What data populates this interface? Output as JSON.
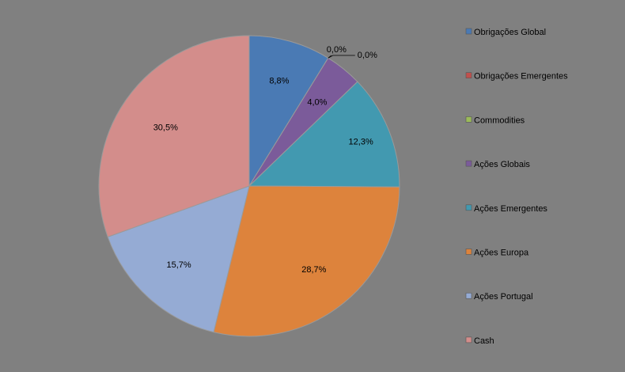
{
  "chart_data": {
    "type": "pie",
    "title": "",
    "legend_position": "right",
    "slices": [
      {
        "label": "Obrigações Global",
        "value": 8.8,
        "display": "8,8%",
        "color": "#4a7ab4"
      },
      {
        "label": "Obrigações Emergentes",
        "value": 0.0,
        "display": "0,0%",
        "color": "#c0504d"
      },
      {
        "label": "Commodities",
        "value": 0.0,
        "display": "0,0%",
        "color": "#9bbb59"
      },
      {
        "label": "Ações Globais",
        "value": 4.0,
        "display": "4,0%",
        "color": "#7b5b9a"
      },
      {
        "label": "Ações Emergentes",
        "value": 12.3,
        "display": "12,3%",
        "color": "#4299b0"
      },
      {
        "label": "Ações Europa",
        "value": 28.7,
        "display": "28,7%",
        "color": "#dd833c"
      },
      {
        "label": "Ações Portugal",
        "value": 15.7,
        "display": "15,7%",
        "color": "#95abd4"
      },
      {
        "label": "Cash",
        "value": 30.5,
        "display": "30,5%",
        "color": "#d38d8b"
      }
    ]
  }
}
